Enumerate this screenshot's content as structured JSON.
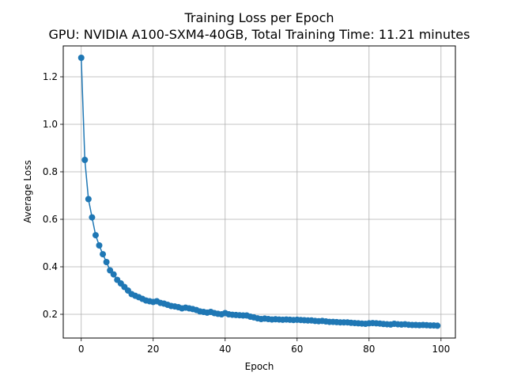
{
  "chart_data": {
    "type": "line",
    "title": "Training Loss per Epoch",
    "subtitle": "GPU: NVIDIA A100-SXM4-40GB, Total Training Time: 11.21 minutes",
    "xlabel": "Epoch",
    "ylabel": "Average Loss",
    "xlim": [
      -5,
      104
    ],
    "ylim": [
      0.1,
      1.33
    ],
    "xticks": [
      0,
      20,
      40,
      60,
      80,
      100
    ],
    "yticks": [
      0.2,
      0.4,
      0.6,
      0.8,
      1.0,
      1.2
    ],
    "xtick_labels": [
      "0",
      "20",
      "40",
      "60",
      "80",
      "100"
    ],
    "ytick_labels": [
      "0.2",
      "0.4",
      "0.6",
      "0.8",
      "1.0",
      "1.2"
    ],
    "grid": true,
    "marker": "circle",
    "colors": {
      "series": "#1f77b4",
      "grid": "#b0b0b0"
    },
    "series": [
      {
        "x": [
          0,
          1,
          2,
          3,
          4,
          5,
          6,
          7,
          8,
          9,
          10,
          11,
          12,
          13,
          14,
          15,
          16,
          17,
          18,
          19,
          20,
          21,
          22,
          23,
          24,
          25,
          26,
          27,
          28,
          29,
          30,
          31,
          32,
          33,
          34,
          35,
          36,
          37,
          38,
          39,
          40,
          41,
          42,
          43,
          44,
          45,
          46,
          47,
          48,
          49,
          50,
          51,
          52,
          53,
          54,
          55,
          56,
          57,
          58,
          59,
          60,
          61,
          62,
          63,
          64,
          65,
          66,
          67,
          68,
          69,
          70,
          71,
          72,
          73,
          74,
          75,
          76,
          77,
          78,
          79,
          80,
          81,
          82,
          83,
          84,
          85,
          86,
          87,
          88,
          89,
          90,
          91,
          92,
          93,
          94,
          95,
          96,
          97,
          98,
          99
        ],
        "values": [
          1.28,
          0.85,
          0.685,
          0.608,
          0.533,
          0.49,
          0.453,
          0.42,
          0.385,
          0.368,
          0.345,
          0.33,
          0.315,
          0.3,
          0.285,
          0.278,
          0.272,
          0.265,
          0.258,
          0.255,
          0.252,
          0.255,
          0.248,
          0.245,
          0.24,
          0.235,
          0.233,
          0.23,
          0.225,
          0.228,
          0.225,
          0.222,
          0.218,
          0.212,
          0.21,
          0.207,
          0.21,
          0.205,
          0.202,
          0.2,
          0.205,
          0.2,
          0.198,
          0.197,
          0.196,
          0.195,
          0.195,
          0.19,
          0.187,
          0.183,
          0.18,
          0.182,
          0.18,
          0.178,
          0.179,
          0.178,
          0.177,
          0.178,
          0.177,
          0.176,
          0.177,
          0.176,
          0.175,
          0.174,
          0.174,
          0.172,
          0.171,
          0.172,
          0.17,
          0.168,
          0.168,
          0.167,
          0.166,
          0.166,
          0.166,
          0.164,
          0.163,
          0.162,
          0.161,
          0.16,
          0.162,
          0.163,
          0.162,
          0.161,
          0.159,
          0.158,
          0.157,
          0.16,
          0.158,
          0.157,
          0.158,
          0.156,
          0.155,
          0.155,
          0.154,
          0.155,
          0.154,
          0.153,
          0.153,
          0.152
        ]
      }
    ]
  }
}
